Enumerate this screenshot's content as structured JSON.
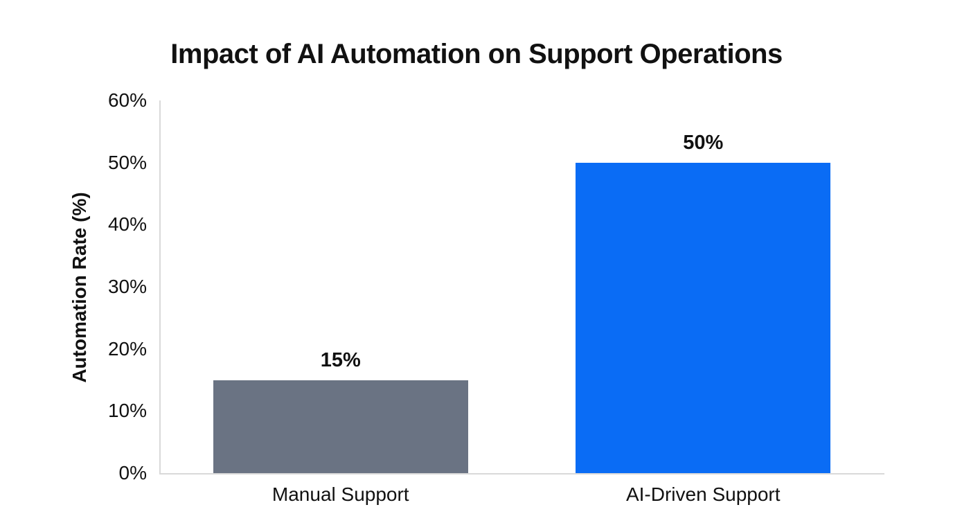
{
  "chart_data": {
    "type": "bar",
    "title": "Impact of AI Automation on Support Operations",
    "ylabel": "Automation Rate (%)",
    "xlabel": "",
    "categories": [
      "Manual Support",
      "AI-Driven Support"
    ],
    "values": [
      15,
      50
    ],
    "value_labels": [
      "15%",
      "50%"
    ],
    "bar_colors": [
      "#6a7383",
      "#0a6cf5"
    ],
    "ylim": [
      0,
      60
    ],
    "ytick_step": 10,
    "yticks": [
      "0%",
      "10%",
      "20%",
      "30%",
      "40%",
      "50%",
      "60%"
    ],
    "grid": false,
    "legend": false,
    "axis_color": "#d9d9d9",
    "text_color": "#111111",
    "background": "#ffffff"
  }
}
